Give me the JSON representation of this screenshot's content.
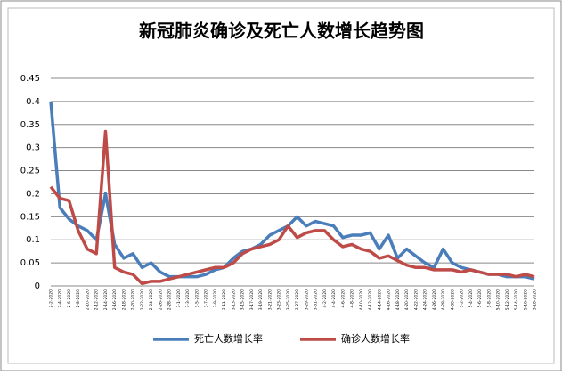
{
  "chart_data": {
    "type": "line",
    "title": "新冠肺炎确诊及死亡人数增长趋势图",
    "categories": [
      "2-2-2020",
      "2-4-2020",
      "2-6-2020",
      "2-8-2020",
      "2-10-2020",
      "2-12-2020",
      "2-14-2020",
      "2-16-2020",
      "2-18-2020",
      "2-20-2020",
      "2-22-2020",
      "2-24-2020",
      "2-26-2020",
      "2-28-2020",
      "3-1-2020",
      "3-3-2020",
      "3-5-2020",
      "3-7-2020",
      "3-9-2020",
      "3-11-2020",
      "3-13-2020",
      "3-15-2020",
      "3-17-2020",
      "3-19-2020",
      "3-21-2020",
      "3-23-2020",
      "3-25-2020",
      "3-27-2020",
      "3-29-2020",
      "3-31-2020",
      "4-2-2020",
      "4-4-2020",
      "4-6-2020",
      "4-8-2020",
      "4-10-2020",
      "4-12-2020",
      "4-14-2020",
      "4-16-2020",
      "4-18-2020",
      "4-20-2020",
      "4-22-2020",
      "4-24-2020",
      "4-26-2020",
      "4-28-2020",
      "4-30-2020",
      "5-2-2020",
      "5-4-2020",
      "5-6-2020",
      "5-8-2020",
      "5-10-2020",
      "5-12-2020",
      "5-14-2020",
      "5-16-2020",
      "5-18-2020"
    ],
    "series": [
      {
        "name": "死亡人数增长率",
        "color": "#4a7ebb",
        "values": [
          0.4,
          0.17,
          0.145,
          0.13,
          0.12,
          0.1,
          0.2,
          0.09,
          0.06,
          0.07,
          0.04,
          0.05,
          0.03,
          0.02,
          0.02,
          0.02,
          0.02,
          0.025,
          0.035,
          0.04,
          0.06,
          0.075,
          0.08,
          0.09,
          0.11,
          0.12,
          0.13,
          0.15,
          0.13,
          0.14,
          0.135,
          0.13,
          0.105,
          0.11,
          0.11,
          0.115,
          0.08,
          0.11,
          0.06,
          0.08,
          0.065,
          0.05,
          0.04,
          0.08,
          0.05,
          0.04,
          0.035,
          0.03,
          0.025,
          0.025,
          0.02,
          0.02,
          0.02,
          0.015
        ]
      },
      {
        "name": "确诊人数增长率",
        "color": "#be4b48",
        "values": [
          0.215,
          0.19,
          0.185,
          0.12,
          0.08,
          0.07,
          0.335,
          0.04,
          0.03,
          0.025,
          0.005,
          0.01,
          0.01,
          0.015,
          0.02,
          0.025,
          0.03,
          0.035,
          0.04,
          0.04,
          0.05,
          0.07,
          0.08,
          0.085,
          0.09,
          0.1,
          0.13,
          0.105,
          0.115,
          0.12,
          0.12,
          0.1,
          0.085,
          0.09,
          0.08,
          0.075,
          0.06,
          0.065,
          0.055,
          0.045,
          0.04,
          0.04,
          0.035,
          0.035,
          0.035,
          0.03,
          0.035,
          0.03,
          0.025,
          0.025,
          0.025,
          0.02,
          0.025,
          0.02
        ]
      }
    ],
    "ylim": [
      0,
      0.45
    ],
    "yticks": [
      0,
      0.05,
      0.1,
      0.15,
      0.2,
      0.25,
      0.3,
      0.35,
      0.4,
      0.45
    ],
    "grid": true,
    "legend": "bottom"
  }
}
